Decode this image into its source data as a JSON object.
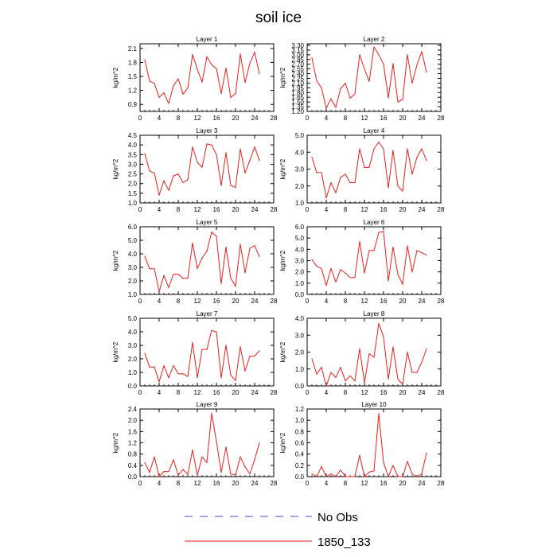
{
  "title": "soil ice",
  "colors": {
    "model_line": "#e8201c",
    "obs_line": "#3f49c9",
    "axis": "#000000"
  },
  "legend": {
    "entries": [
      {
        "label": "No Obs",
        "style": "dashed",
        "color": "#3f49c9"
      },
      {
        "label": "1850_133",
        "style": "solid",
        "color": "#e8201c"
      }
    ]
  },
  "chart_data": [
    {
      "type": "line",
      "title": "Layer 1",
      "ylabel": "kg/m^2",
      "xlim": [
        0,
        28
      ],
      "xticks": [
        0,
        4,
        8,
        12,
        16,
        20,
        24,
        28
      ],
      "ylim": [
        0.75,
        2.2
      ],
      "yticks": [
        0.9,
        1.2,
        1.5,
        1.8,
        2.1
      ],
      "ytick_labels": [
        "0.9",
        "1.2",
        "1.5",
        "1.8",
        "2.1"
      ],
      "series": [
        {
          "x": [
            1,
            2,
            3,
            4,
            5,
            6,
            7,
            8,
            9,
            10,
            11,
            12,
            13,
            14,
            15,
            16,
            17,
            18,
            19,
            20,
            21,
            22,
            23,
            24,
            25
          ],
          "y": [
            1.85,
            1.4,
            1.35,
            1.05,
            1.15,
            0.92,
            1.3,
            1.45,
            1.12,
            1.25,
            1.97,
            1.65,
            1.38,
            1.92,
            1.75,
            1.67,
            1.13,
            1.68,
            1.05,
            1.13,
            1.98,
            1.37,
            1.78,
            2.02,
            1.56
          ]
        }
      ]
    },
    {
      "type": "line",
      "title": "Layer 2",
      "ylabel": "kg/m^2",
      "xlim": [
        0,
        28
      ],
      "xticks": [
        0,
        4,
        8,
        12,
        16,
        20,
        24,
        28
      ],
      "ylim": [
        1.2,
        3.35
      ],
      "yticks": [
        1.2,
        1.35,
        1.5,
        1.65,
        1.8,
        1.95,
        2.1,
        2.25,
        2.4,
        2.55,
        2.7,
        2.85,
        3.0,
        3.15,
        3.3
      ],
      "ytick_labels": [
        "1.20",
        "1.35",
        "1.50",
        "1.65",
        "1.80",
        "1.95",
        "2.10",
        "2.25",
        "2.40",
        "2.55",
        "2.70",
        "2.85",
        "3.00",
        "3.15",
        "3.30"
      ],
      "series": [
        {
          "x": [
            1,
            2,
            3,
            4,
            5,
            6,
            7,
            8,
            9,
            10,
            11,
            12,
            13,
            14,
            15,
            16,
            17,
            18,
            19,
            20,
            21,
            22,
            23,
            24,
            25
          ],
          "y": [
            2.9,
            2.17,
            1.95,
            1.3,
            1.6,
            1.33,
            1.92,
            2.1,
            1.62,
            1.75,
            3.0,
            2.55,
            2.15,
            3.25,
            3.0,
            2.7,
            1.63,
            2.72,
            1.5,
            1.58,
            3.0,
            2.1,
            2.68,
            3.1,
            2.45
          ]
        }
      ]
    },
    {
      "type": "line",
      "title": "Layer 3",
      "ylabel": "kg/m^2",
      "xlim": [
        0,
        28
      ],
      "xticks": [
        0,
        4,
        8,
        12,
        16,
        20,
        24,
        28
      ],
      "ylim": [
        1.0,
        4.5
      ],
      "yticks": [
        1.0,
        1.5,
        2.0,
        2.5,
        3.0,
        3.5,
        4.0,
        4.5
      ],
      "ytick_labels": [
        "1.0",
        "1.5",
        "2.0",
        "2.5",
        "3.0",
        "3.5",
        "4.0",
        "4.5"
      ],
      "series": [
        {
          "x": [
            1,
            2,
            3,
            4,
            5,
            6,
            7,
            8,
            9,
            10,
            11,
            12,
            13,
            14,
            15,
            16,
            17,
            18,
            19,
            20,
            21,
            22,
            23,
            24,
            25
          ],
          "y": [
            3.55,
            2.65,
            2.55,
            1.4,
            2.15,
            1.65,
            2.4,
            2.5,
            2.05,
            2.2,
            3.9,
            3.1,
            2.85,
            4.05,
            4.0,
            3.5,
            1.9,
            3.6,
            1.9,
            1.8,
            3.8,
            2.55,
            3.2,
            3.9,
            3.2
          ]
        }
      ]
    },
    {
      "type": "line",
      "title": "Layer 4",
      "ylabel": "kg/m^2",
      "xlim": [
        0,
        28
      ],
      "xticks": [
        0,
        4,
        8,
        12,
        16,
        20,
        24,
        28
      ],
      "ylim": [
        1.0,
        5.0
      ],
      "yticks": [
        1.0,
        2.0,
        3.0,
        4.0,
        5.0
      ],
      "ytick_labels": [
        "1.0",
        "2.0",
        "3.0",
        "4.0",
        "5.0"
      ],
      "series": [
        {
          "x": [
            1,
            2,
            3,
            4,
            5,
            6,
            7,
            8,
            9,
            10,
            11,
            12,
            13,
            14,
            15,
            16,
            17,
            18,
            19,
            20,
            21,
            22,
            23,
            24,
            25
          ],
          "y": [
            3.7,
            2.8,
            2.8,
            1.3,
            2.2,
            1.6,
            2.5,
            2.7,
            2.2,
            2.2,
            4.2,
            3.1,
            3.1,
            4.2,
            4.6,
            4.2,
            1.9,
            4.1,
            2.0,
            1.7,
            4.2,
            2.7,
            3.7,
            4.2,
            3.5
          ]
        }
      ]
    },
    {
      "type": "line",
      "title": "Layer 5",
      "ylabel": "kg/m^2",
      "xlim": [
        0,
        28
      ],
      "xticks": [
        0,
        4,
        8,
        12,
        16,
        20,
        24,
        28
      ],
      "ylim": [
        1.0,
        6.0
      ],
      "yticks": [
        1.0,
        2.0,
        3.0,
        4.0,
        5.0,
        6.0
      ],
      "ytick_labels": [
        "1.0",
        "2.0",
        "3.0",
        "4.0",
        "5.0",
        "6.0"
      ],
      "series": [
        {
          "x": [
            1,
            2,
            3,
            4,
            5,
            6,
            7,
            8,
            9,
            10,
            11,
            12,
            13,
            14,
            15,
            16,
            17,
            18,
            19,
            20,
            21,
            22,
            23,
            24,
            25
          ],
          "y": [
            3.8,
            2.9,
            2.9,
            1.2,
            2.4,
            1.5,
            2.5,
            2.5,
            2.2,
            2.2,
            4.8,
            2.9,
            3.7,
            4.2,
            5.6,
            5.3,
            1.8,
            4.5,
            2.2,
            1.6,
            4.7,
            2.6,
            4.4,
            4.6,
            3.8
          ]
        }
      ]
    },
    {
      "type": "line",
      "title": "Layer 6",
      "ylabel": "kg/m^2",
      "xlim": [
        0,
        28
      ],
      "xticks": [
        0,
        4,
        8,
        12,
        16,
        20,
        24,
        28
      ],
      "ylim": [
        0.0,
        6.0
      ],
      "yticks": [
        0.0,
        1.0,
        2.0,
        3.0,
        4.0,
        5.0,
        6.0
      ],
      "ytick_labels": [
        "0.0",
        "1.0",
        "2.0",
        "3.0",
        "4.0",
        "5.0",
        "6.0"
      ],
      "series": [
        {
          "x": [
            1,
            2,
            3,
            4,
            5,
            6,
            7,
            8,
            9,
            10,
            11,
            12,
            13,
            14,
            15,
            16,
            17,
            18,
            19,
            20,
            21,
            22,
            23,
            24,
            25
          ],
          "y": [
            3.1,
            2.5,
            2.3,
            0.8,
            2.3,
            1.1,
            2.2,
            1.9,
            1.5,
            1.5,
            4.7,
            1.9,
            3.9,
            3.9,
            5.5,
            5.6,
            1.2,
            4.2,
            1.8,
            0.9,
            4.3,
            2.0,
            3.9,
            3.7,
            3.5
          ]
        }
      ]
    },
    {
      "type": "line",
      "title": "Layer 7",
      "ylabel": "kg/m^2",
      "xlim": [
        0,
        28
      ],
      "xticks": [
        0,
        4,
        8,
        12,
        16,
        20,
        24,
        28
      ],
      "ylim": [
        0.0,
        5.0
      ],
      "yticks": [
        0.0,
        1.0,
        2.0,
        3.0,
        4.0,
        5.0
      ],
      "ytick_labels": [
        "0.0",
        "1.0",
        "2.0",
        "3.0",
        "4.0",
        "5.0"
      ],
      "series": [
        {
          "x": [
            1,
            2,
            3,
            4,
            5,
            6,
            7,
            8,
            9,
            10,
            11,
            12,
            13,
            14,
            15,
            16,
            17,
            18,
            19,
            20,
            21,
            22,
            23,
            24,
            25
          ],
          "y": [
            2.4,
            1.4,
            1.4,
            0.3,
            1.5,
            0.6,
            1.5,
            0.9,
            0.9,
            0.7,
            3.2,
            0.6,
            2.7,
            2.7,
            4.1,
            4.0,
            0.6,
            3.0,
            0.8,
            0.4,
            2.9,
            1.1,
            2.2,
            2.2,
            2.6
          ]
        }
      ]
    },
    {
      "type": "line",
      "title": "Layer 8",
      "ylabel": "kg/m^2",
      "xlim": [
        0,
        28
      ],
      "xticks": [
        0,
        4,
        8,
        12,
        16,
        20,
        24,
        28
      ],
      "ylim": [
        0.0,
        4.0
      ],
      "yticks": [
        0.0,
        1.0,
        2.0,
        3.0,
        4.0
      ],
      "ytick_labels": [
        "0.0",
        "1.0",
        "2.0",
        "3.0",
        "4.0"
      ],
      "series": [
        {
          "x": [
            1,
            2,
            3,
            4,
            5,
            6,
            7,
            8,
            9,
            10,
            11,
            12,
            13,
            14,
            15,
            16,
            17,
            18,
            19,
            20,
            21,
            22,
            23,
            24,
            25
          ],
          "y": [
            1.6,
            0.7,
            1.1,
            0.0,
            0.8,
            0.5,
            1.1,
            0.3,
            0.6,
            0.3,
            2.2,
            0.2,
            1.9,
            1.7,
            3.7,
            2.9,
            0.4,
            2.3,
            0.4,
            0.1,
            2.0,
            0.8,
            0.8,
            1.4,
            2.2
          ]
        }
      ]
    },
    {
      "type": "line",
      "title": "Layer 9",
      "ylabel": "kg/m^2",
      "xlim": [
        0,
        28
      ],
      "xticks": [
        0,
        4,
        8,
        12,
        16,
        20,
        24,
        28
      ],
      "ylim": [
        0.0,
        2.4
      ],
      "yticks": [
        0.0,
        0.4,
        0.8,
        1.2,
        1.6,
        2.0,
        2.4
      ],
      "ytick_labels": [
        "0.0",
        "0.4",
        "0.8",
        "1.2",
        "1.6",
        "2.0",
        "2.4"
      ],
      "series": [
        {
          "x": [
            1,
            2,
            3,
            4,
            5,
            6,
            7,
            8,
            9,
            10,
            11,
            12,
            13,
            14,
            15,
            16,
            17,
            18,
            19,
            20,
            21,
            22,
            23,
            24,
            25
          ],
          "y": [
            0.5,
            0.15,
            0.7,
            0.0,
            0.18,
            0.18,
            0.6,
            0.05,
            0.25,
            0.08,
            0.95,
            0.05,
            0.7,
            0.5,
            2.25,
            1.25,
            0.15,
            1.05,
            0.1,
            0.05,
            0.7,
            0.35,
            0.1,
            0.6,
            1.2
          ]
        }
      ]
    },
    {
      "type": "line",
      "title": "Layer 10",
      "ylabel": "kg/m^2",
      "xlim": [
        0,
        28
      ],
      "xticks": [
        0,
        4,
        8,
        12,
        16,
        20,
        24,
        28
      ],
      "ylim": [
        0.0,
        1.2
      ],
      "yticks": [
        0.0,
        0.2,
        0.4,
        0.6,
        0.8,
        1.0,
        1.2
      ],
      "ytick_labels": [
        "0.0",
        "0.2",
        "0.4",
        "0.6",
        "0.8",
        "1.0",
        "1.2"
      ],
      "series": [
        {
          "x": [
            1,
            2,
            3,
            4,
            5,
            6,
            7,
            8,
            9,
            10,
            11,
            12,
            13,
            14,
            15,
            16,
            17,
            18,
            19,
            20,
            21,
            22,
            23,
            24,
            25
          ],
          "y": [
            0.05,
            0.0,
            0.18,
            0.0,
            0.05,
            0.0,
            0.12,
            0.0,
            0.0,
            0.0,
            0.38,
            0.0,
            0.08,
            0.1,
            1.12,
            0.25,
            0.0,
            0.2,
            0.0,
            0.0,
            0.27,
            0.05,
            0.0,
            0.05,
            0.42
          ]
        }
      ]
    }
  ]
}
